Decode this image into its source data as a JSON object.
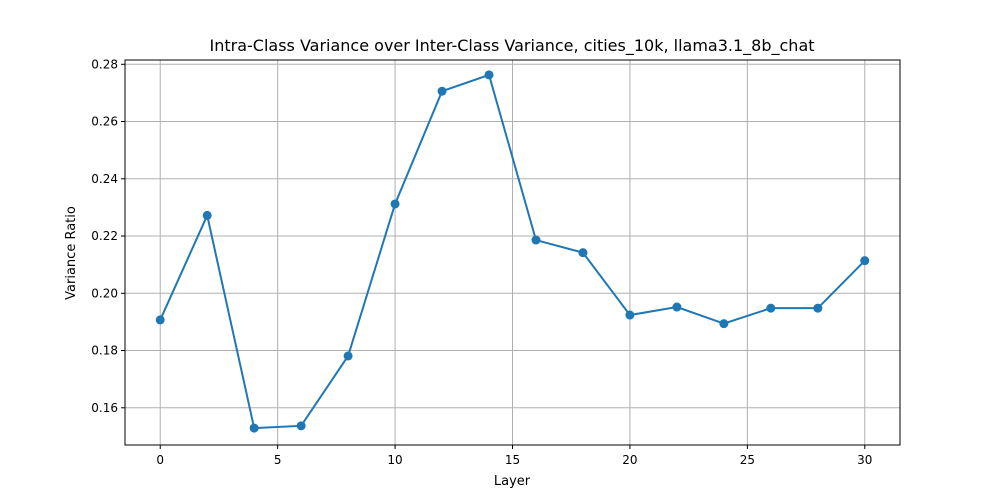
{
  "chart_data": {
    "type": "line",
    "title": "Intra-Class Variance over Inter-Class Variance, cities_10k, llama3.1_8b_chat",
    "xlabel": "Layer",
    "ylabel": "Variance Ratio",
    "xlim": [
      -1.5,
      31.5
    ],
    "ylim": [
      0.147,
      0.2815
    ],
    "xticks": [
      0,
      5,
      10,
      15,
      20,
      25,
      30
    ],
    "xtick_labels": [
      "0",
      "5",
      "10",
      "15",
      "20",
      "25",
      "30"
    ],
    "yticks": [
      0.16,
      0.18,
      0.2,
      0.22,
      0.24,
      0.26,
      0.28
    ],
    "ytick_labels": [
      "0.16",
      "0.18",
      "0.20",
      "0.22",
      "0.24",
      "0.26",
      "0.28"
    ],
    "grid": true,
    "series": [
      {
        "color": "#1f77b4",
        "marker": "circle",
        "x": [
          0,
          2,
          4,
          6,
          8,
          10,
          12,
          14,
          16,
          18,
          20,
          22,
          24,
          26,
          28,
          30
        ],
        "y": [
          0.1907,
          0.2272,
          0.1529,
          0.1537,
          0.1781,
          0.2312,
          0.2706,
          0.2763,
          0.2186,
          0.2142,
          0.1924,
          0.1952,
          0.1894,
          0.1948,
          0.1948,
          0.2114
        ]
      }
    ]
  }
}
